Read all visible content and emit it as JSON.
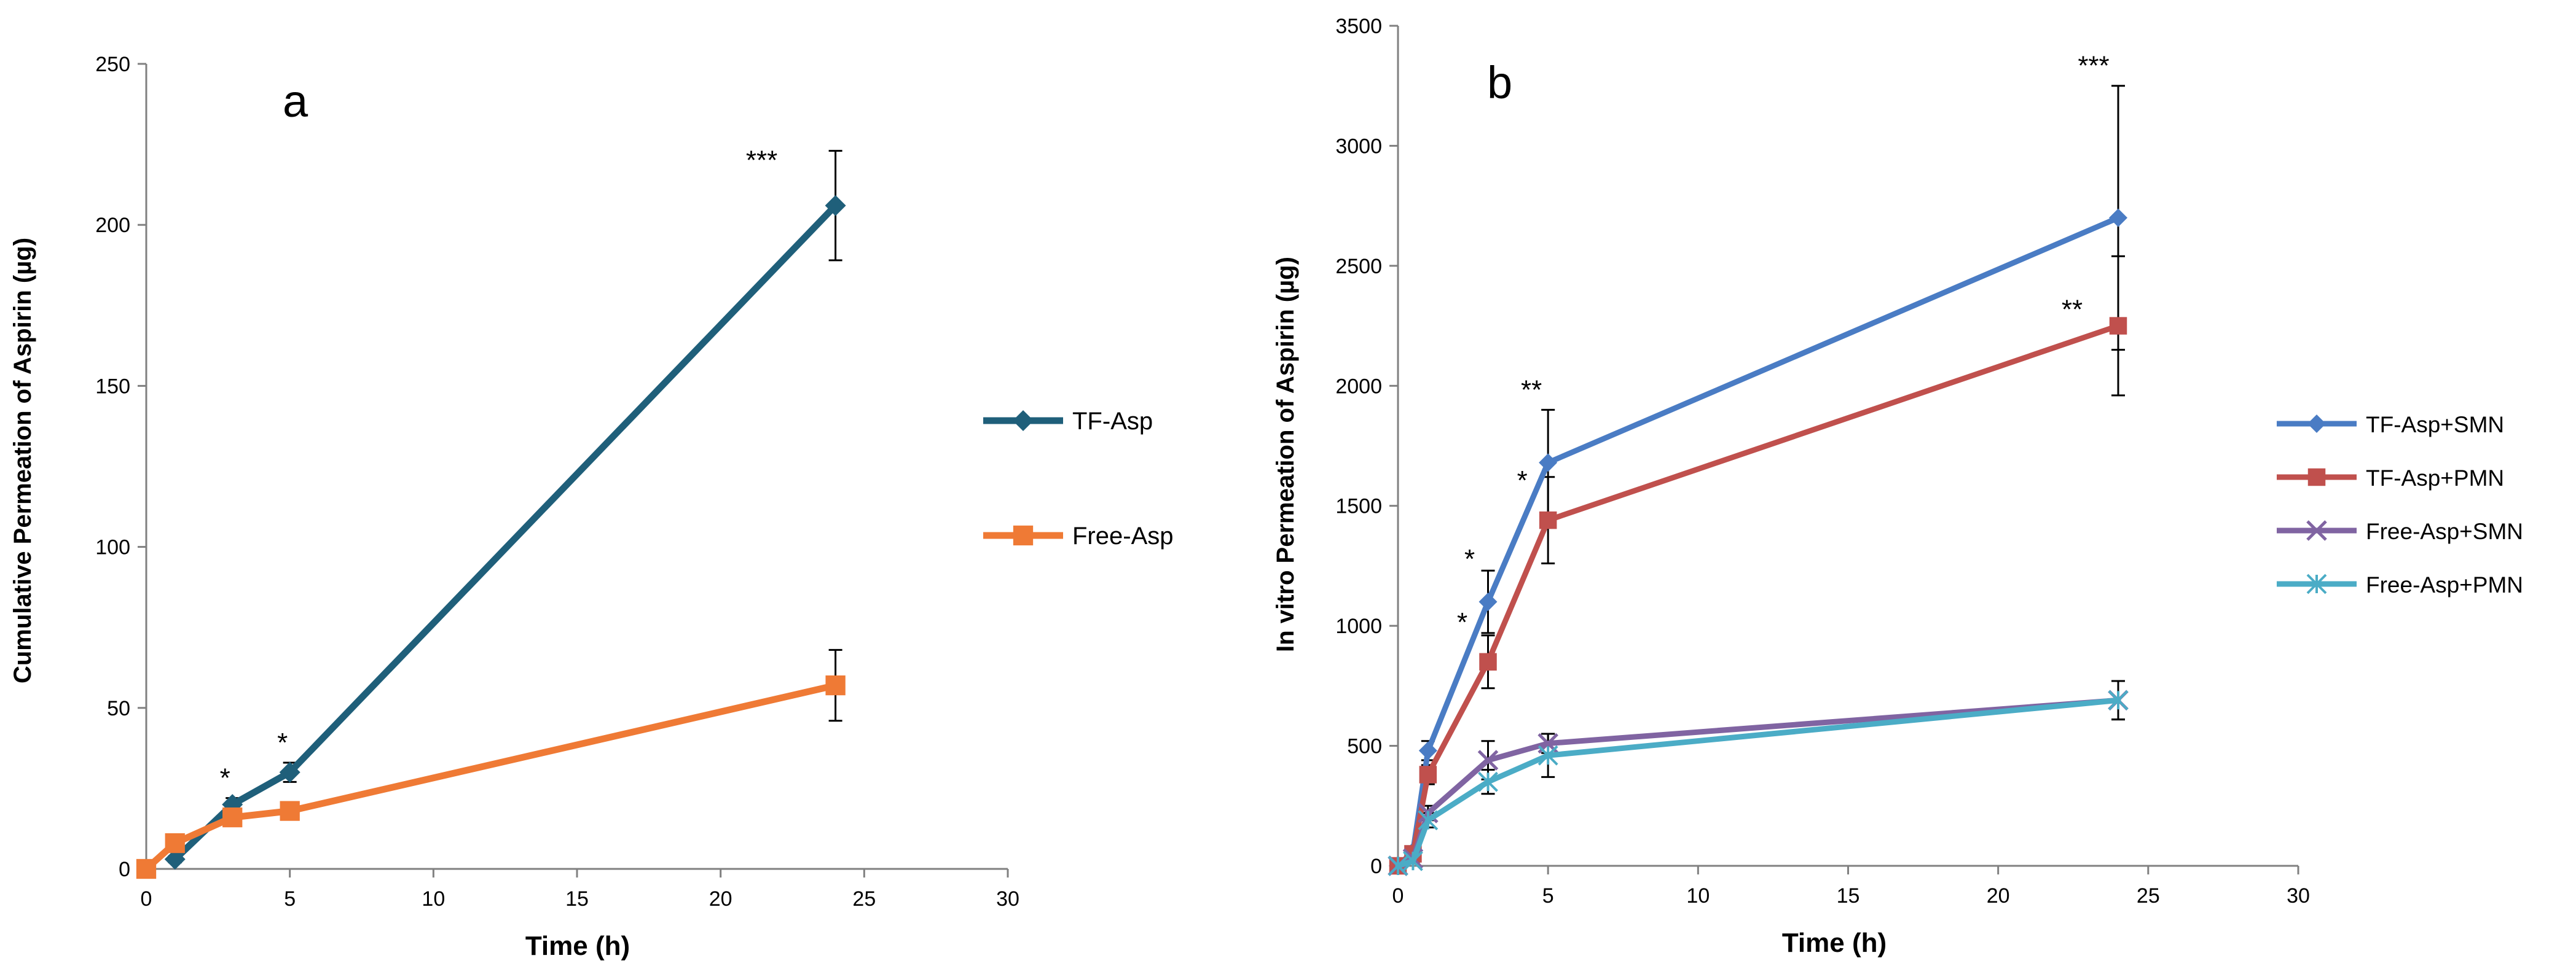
{
  "chart_data": [
    {
      "type": "line",
      "panel_label": "a",
      "title": "",
      "xlabel": "Time (h)",
      "ylabel": "Cumulative Permeation of Aspirin (µg)",
      "xlim": [
        0,
        30
      ],
      "ylim": [
        0,
        250
      ],
      "xticks": [
        "0",
        "5",
        "10",
        "15",
        "20",
        "25",
        "30"
      ],
      "yticks": [
        "0",
        "50",
        "100",
        "150",
        "200",
        "250"
      ],
      "grid": false,
      "legend_position": "right",
      "series": [
        {
          "name": "TF-Asp",
          "color": "#1f5f7a",
          "marker": "diamond",
          "x": [
            1,
            3,
            5,
            24
          ],
          "y": [
            3,
            20,
            30,
            206
          ],
          "error": [
            1,
            2,
            3,
            17
          ],
          "annotations": [
            {
              "x": 3,
              "text": "*"
            },
            {
              "x": 5,
              "text": "*"
            },
            {
              "x": 24,
              "text": "***"
            }
          ]
        },
        {
          "name": "Free-Asp",
          "color": "#ef7a35",
          "marker": "square",
          "x": [
            0,
            1,
            3,
            5,
            24
          ],
          "y": [
            0,
            8,
            16,
            18,
            57
          ],
          "error": [
            0,
            1,
            2,
            2,
            11
          ],
          "annotations": []
        }
      ]
    },
    {
      "type": "line",
      "panel_label": "b",
      "title": "",
      "xlabel": "Time (h)",
      "ylabel": "In vitro Permeation of Aspirin (µg)",
      "xlim": [
        0,
        30
      ],
      "ylim": [
        0,
        3500
      ],
      "xticks": [
        "0",
        "5",
        "10",
        "15",
        "20",
        "25",
        "30"
      ],
      "yticks": [
        "0",
        "500",
        "1000",
        "1500",
        "2000",
        "2500",
        "3000",
        "3500"
      ],
      "grid": false,
      "legend_position": "right",
      "series": [
        {
          "name": "TF-Asp+SMN",
          "color": "#4a7cc4",
          "marker": "diamond",
          "x": [
            0,
            0.5,
            1,
            3,
            5,
            24
          ],
          "y": [
            0,
            60,
            480,
            1100,
            1680,
            2700
          ],
          "error": [
            0,
            20,
            40,
            130,
            220,
            550
          ],
          "annotations": [
            {
              "x": 3,
              "text": "*"
            },
            {
              "x": 5,
              "text": "**"
            },
            {
              "x": 24,
              "text": "***"
            }
          ]
        },
        {
          "name": "TF-Asp+PMN",
          "color": "#c0504d",
          "marker": "square",
          "x": [
            0,
            0.5,
            1,
            3,
            5,
            24
          ],
          "y": [
            0,
            50,
            380,
            850,
            1440,
            2250
          ],
          "error": [
            0,
            20,
            40,
            110,
            180,
            290
          ],
          "annotations": [
            {
              "x": 3,
              "text": "*"
            },
            {
              "x": 5,
              "text": "*"
            },
            {
              "x": 24,
              "text": "**"
            }
          ]
        },
        {
          "name": "Free-Asp+SMN",
          "color": "#8064a2",
          "marker": "x",
          "x": [
            0,
            0.5,
            1,
            3,
            5,
            24
          ],
          "y": [
            0,
            30,
            220,
            440,
            510,
            690
          ],
          "error": [
            0,
            10,
            30,
            80,
            40,
            80
          ],
          "annotations": []
        },
        {
          "name": "Free-Asp+PMN",
          "color": "#4bacc6",
          "marker": "star",
          "x": [
            0,
            0.5,
            1,
            3,
            5,
            24
          ],
          "y": [
            0,
            20,
            190,
            350,
            460,
            690
          ],
          "error": [
            0,
            10,
            30,
            50,
            90,
            80
          ],
          "annotations": []
        }
      ]
    }
  ]
}
